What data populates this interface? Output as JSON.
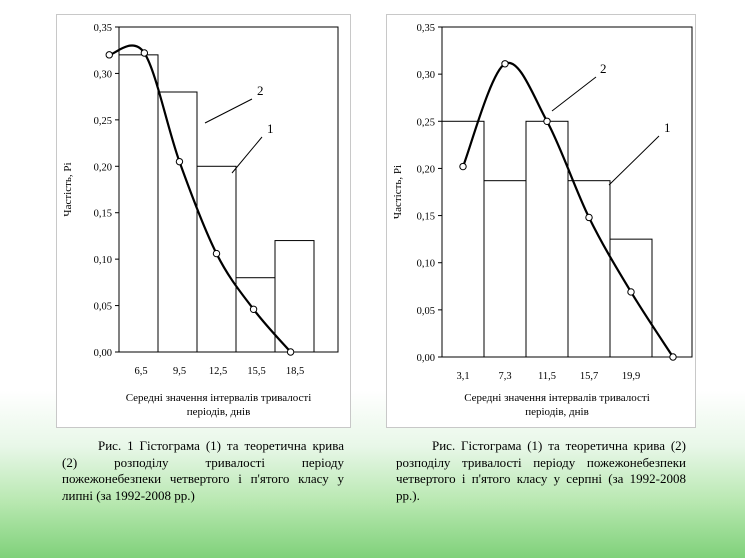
{
  "chart_data": [
    {
      "type": "bar",
      "ylabel": "Частість, Рі",
      "xlabel_line1": "Середні значення інтервалів тривалості",
      "xlabel_line2": "періодів, днів",
      "ylim": [
        0,
        0.35
      ],
      "yticks": [
        "0,00",
        "0,05",
        "0,10",
        "0,15",
        "0,20",
        "0,25",
        "0,30",
        "0,35"
      ],
      "categories": [
        "6,5",
        "9,5",
        "12,5",
        "15,5",
        "18,5"
      ],
      "values": [
        0.32,
        0.28,
        0.2,
        0.08,
        0.12
      ],
      "curve": {
        "x_index": [
          -0.25,
          0.65,
          1.55,
          2.5,
          3.45,
          4.4
        ],
        "y": [
          0.32,
          0.322,
          0.205,
          0.106,
          0.046,
          0.0
        ],
        "name": "2"
      },
      "labels": {
        "curve": "2",
        "bars": "1"
      },
      "grid": false
    },
    {
      "type": "bar",
      "ylabel": "Частість, Рі",
      "xlabel_line1": "Середні значення інтервалів тривалості",
      "xlabel_line2": "періодів, днів",
      "ylim": [
        0,
        0.35
      ],
      "yticks": [
        "0,00",
        "0,05",
        "0,10",
        "0,15",
        "0,20",
        "0,25",
        "0,30",
        "0,35"
      ],
      "categories": [
        "3,1",
        "7,3",
        "11,5",
        "15,7",
        "19,9"
      ],
      "values": [
        0.25,
        0.187,
        0.25,
        0.187,
        0.125
      ],
      "curve": {
        "x_index": [
          0.5,
          1.5,
          2.5,
          3.5,
          4.5,
          5.5
        ],
        "y": [
          0.202,
          0.311,
          0.25,
          0.148,
          0.069,
          0.0
        ],
        "name": "2"
      },
      "labels": {
        "curve": "2",
        "bars": "1"
      },
      "grid": false
    }
  ],
  "captions": [
    "Рис. 1 Гістограма (1) та теоретична крива (2) розподілу тривалості періоду пожежонебезпеки четвертого і п'ятого класу у липні (за 1992-2008 рр.)",
    "Рис. Гістограма (1) та теоретична крива (2) розподілу тривалості періоду пожежонебезпеки четвертого і п'ятого класу у серпні (за 1992-2008 рр.)."
  ]
}
